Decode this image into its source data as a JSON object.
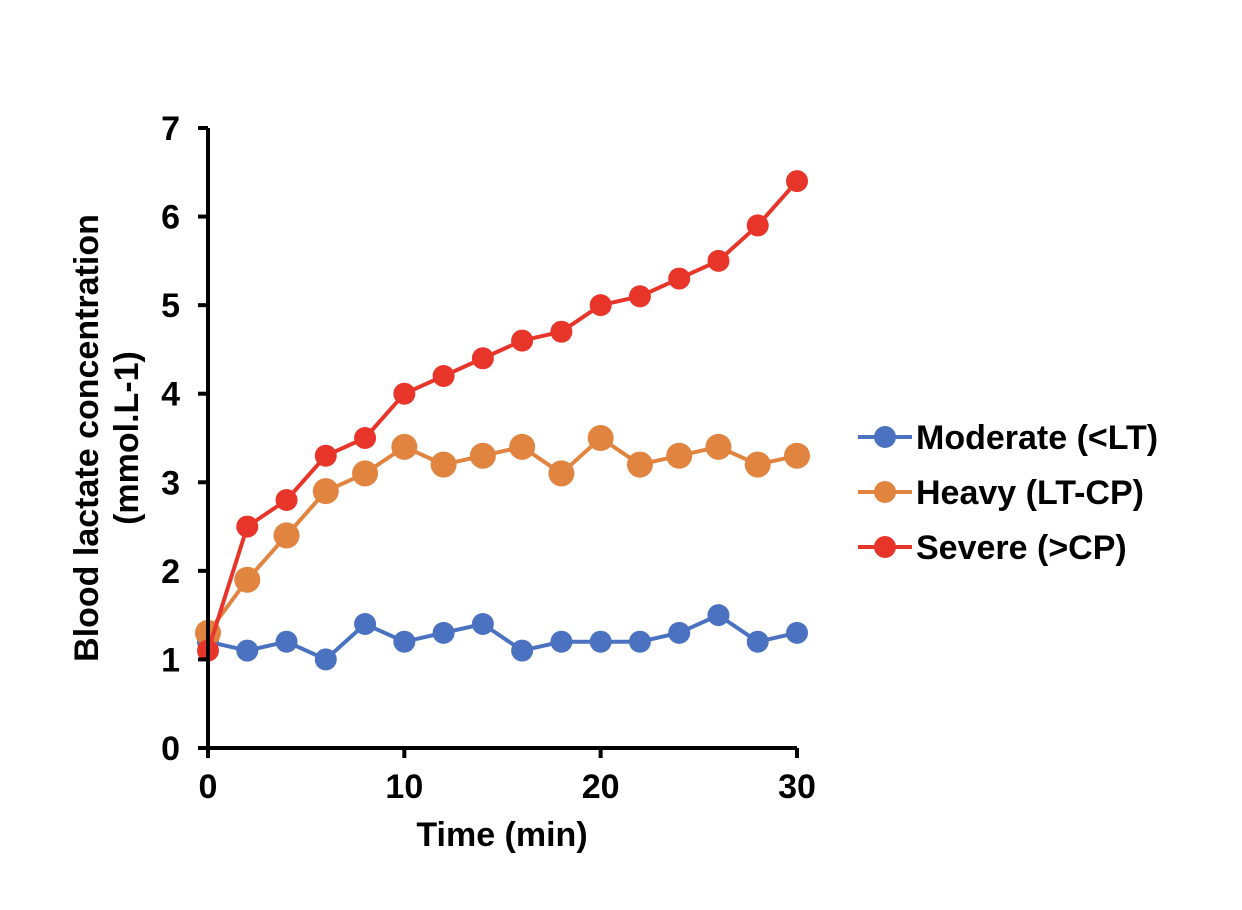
{
  "chart_data": {
    "type": "line",
    "title": "",
    "xlabel": "Time (min)",
    "ylabel_line1": "Blood lactate concentration",
    "ylabel_line2": "(mmol.L-1)",
    "xlim": [
      0,
      30
    ],
    "ylim": [
      0,
      7
    ],
    "x_ticks": [
      0,
      10,
      20,
      30
    ],
    "x_tick_labels": [
      "0",
      "10",
      "20",
      "30"
    ],
    "y_ticks": [
      0,
      1,
      2,
      3,
      4,
      5,
      6,
      7
    ],
    "y_tick_labels": [
      "0",
      "1",
      "2",
      "3",
      "4",
      "5",
      "6",
      "7"
    ],
    "grid": false,
    "legend_position": "right",
    "x": [
      0,
      2,
      4,
      6,
      8,
      10,
      12,
      14,
      16,
      18,
      20,
      22,
      24,
      26,
      28,
      30
    ],
    "series": [
      {
        "name": "Moderate (<LT)",
        "color": "#4A72C0",
        "values": [
          1.2,
          1.1,
          1.2,
          1.0,
          1.4,
          1.2,
          1.3,
          1.4,
          1.1,
          1.2,
          1.2,
          1.2,
          1.3,
          1.5,
          1.2,
          1.3
        ]
      },
      {
        "name": "Heavy (LT-CP)",
        "color": "#E0843F",
        "values": [
          1.3,
          1.9,
          2.4,
          2.9,
          3.1,
          3.4,
          3.2,
          3.3,
          3.4,
          3.1,
          3.5,
          3.2,
          3.3,
          3.4,
          3.2,
          3.3
        ]
      },
      {
        "name": "Severe (>CP)",
        "color": "#E8352A",
        "values": [
          1.1,
          2.5,
          2.8,
          3.3,
          3.5,
          4.0,
          4.2,
          4.4,
          4.6,
          4.7,
          5.0,
          5.1,
          5.3,
          5.5,
          5.9,
          6.4
        ]
      }
    ]
  }
}
